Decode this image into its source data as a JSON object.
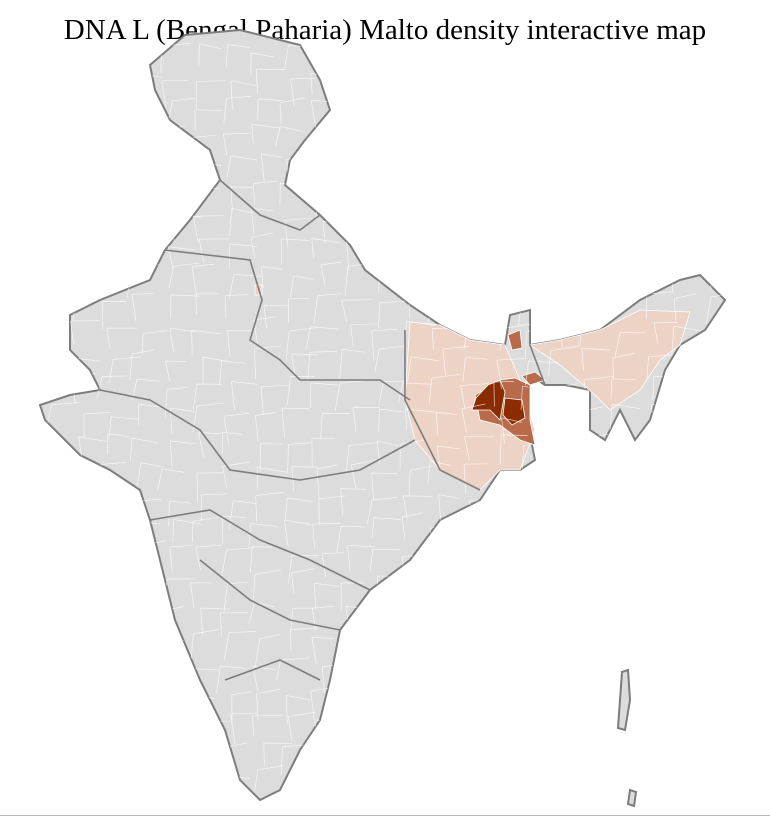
{
  "title": "DNA L (Bengal Paharia) Malto density interactive map",
  "colors": {
    "no_data": "#dcdcdc",
    "low": "#edd3c5",
    "medium": "#b86a4a",
    "high": "#8b2b00",
    "border": "#7d7d7d",
    "district_border": "#ffffff"
  }
}
